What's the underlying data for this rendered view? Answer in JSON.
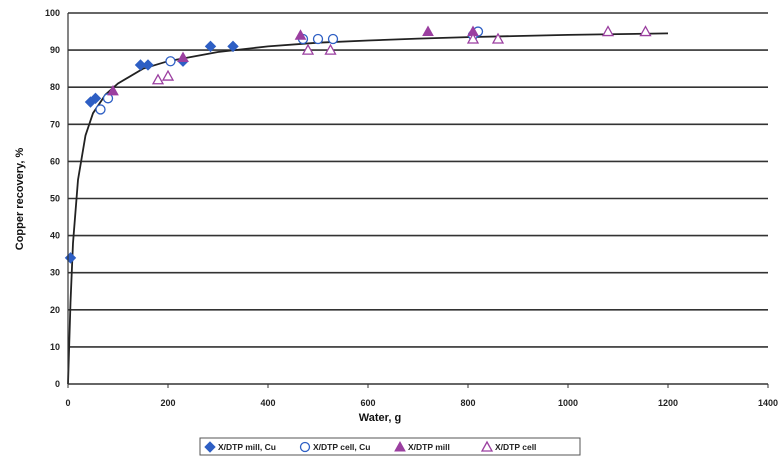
{
  "chart_data": {
    "type": "scatter",
    "title": "",
    "xlabel": "Water, g",
    "ylabel": "Copper recovery, %",
    "xlim": [
      0,
      1400
    ],
    "ylim": [
      0,
      100
    ],
    "x_ticks": [
      "0",
      "200",
      "400",
      "600",
      "800",
      "1000",
      "1200",
      "1400"
    ],
    "y_ticks": [
      "0",
      "10",
      "20",
      "30",
      "40",
      "50",
      "60",
      "70",
      "80",
      "90",
      "100"
    ],
    "grid": "horizontal",
    "legend_position": "bottom",
    "series": [
      {
        "name": "X/DTP mill, Cu",
        "marker": "diamond-filled",
        "color": "#2e5fc4",
        "points": [
          [
            5,
            34
          ],
          [
            45,
            76
          ],
          [
            55,
            77
          ],
          [
            145,
            86
          ],
          [
            160,
            86
          ],
          [
            230,
            87
          ],
          [
            285,
            91
          ],
          [
            330,
            91
          ]
        ]
      },
      {
        "name": "X/DTP cell, Cu",
        "marker": "circle-open",
        "color": "#2e5fc4",
        "points": [
          [
            65,
            74
          ],
          [
            80,
            77
          ],
          [
            205,
            87
          ],
          [
            470,
            93
          ],
          [
            500,
            93
          ],
          [
            530,
            93
          ],
          [
            810,
            94
          ],
          [
            820,
            95
          ]
        ]
      },
      {
        "name": "X/DTP mill",
        "marker": "triangle-filled",
        "color": "#9b3fa0",
        "points": [
          [
            90,
            79
          ],
          [
            230,
            88
          ],
          [
            465,
            94
          ],
          [
            720,
            95
          ],
          [
            810,
            95
          ]
        ]
      },
      {
        "name": "X/DTP cell",
        "marker": "triangle-open",
        "color": "#9b3fa0",
        "points": [
          [
            180,
            82
          ],
          [
            200,
            83
          ],
          [
            480,
            90
          ],
          [
            525,
            90
          ],
          [
            810,
            93
          ],
          [
            860,
            93
          ],
          [
            1080,
            95
          ],
          [
            1155,
            95
          ]
        ]
      }
    ],
    "trendline": {
      "color": "#222222",
      "x_range": [
        0,
        1200
      ],
      "points": [
        [
          0,
          0
        ],
        [
          5,
          22
        ],
        [
          10,
          38
        ],
        [
          20,
          55
        ],
        [
          35,
          67
        ],
        [
          50,
          73
        ],
        [
          75,
          78
        ],
        [
          100,
          81
        ],
        [
          150,
          85
        ],
        [
          200,
          87
        ],
        [
          300,
          89.5
        ],
        [
          400,
          91
        ],
        [
          500,
          92
        ],
        [
          600,
          92.6
        ],
        [
          700,
          93.1
        ],
        [
          800,
          93.5
        ],
        [
          900,
          93.8
        ],
        [
          1000,
          94.1
        ],
        [
          1100,
          94.3
        ],
        [
          1200,
          94.5
        ]
      ]
    }
  }
}
